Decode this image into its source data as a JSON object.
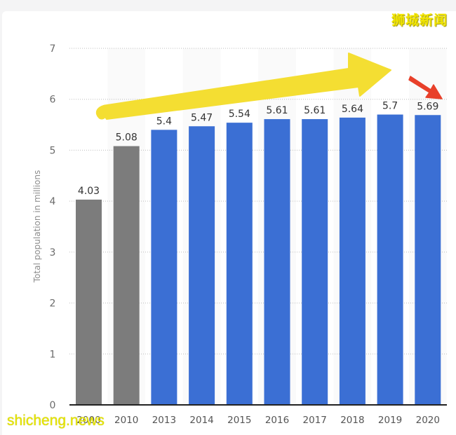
{
  "watermark": {
    "top_right": "狮城新闻",
    "bottom_left": "shicheng.news"
  },
  "colors": {
    "gray_bar": "#7c7c7c",
    "blue_bar": "#3b6fd4",
    "yellow_arrow": "#f5e03a",
    "red_arrow": "#e8402a",
    "axis": "#222222",
    "gridline": "#bdbdbd"
  },
  "chart_data": {
    "type": "bar",
    "title": "",
    "xlabel": "",
    "ylabel": "Total population in millions",
    "ylim": [
      0,
      7
    ],
    "yticks": [
      0,
      1,
      2,
      3,
      4,
      5,
      6,
      7
    ],
    "grid": true,
    "legend": null,
    "categories": [
      "2000",
      "2010",
      "2013",
      "2014",
      "2015",
      "2016",
      "2017",
      "2018",
      "2019",
      "2020"
    ],
    "values": [
      4.03,
      5.08,
      5.4,
      5.47,
      5.54,
      5.61,
      5.61,
      5.64,
      5.7,
      5.69
    ],
    "value_labels": [
      "4.03",
      "5.08",
      "5.4",
      "5.47",
      "5.54",
      "5.61",
      "5.61",
      "5.64",
      "5.7",
      "5.69"
    ],
    "bar_colors": [
      "gray",
      "gray",
      "blue",
      "blue",
      "blue",
      "blue",
      "blue",
      "blue",
      "blue",
      "blue"
    ],
    "annotations": [
      {
        "type": "arrow",
        "color": "yellow",
        "description": "upward trend arrow from 2013 toward 2019"
      },
      {
        "type": "arrow",
        "color": "red",
        "description": "downward arrow pointing at 2020"
      }
    ]
  }
}
